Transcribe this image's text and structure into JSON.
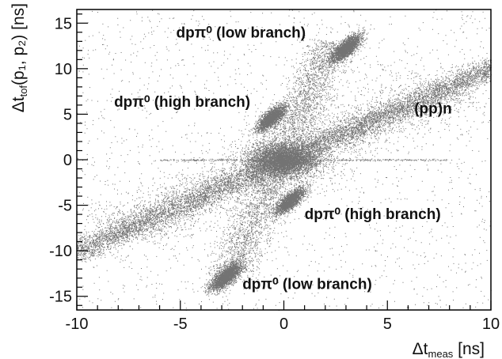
{
  "chart_data": {
    "type": "scatter",
    "title": "",
    "xlabel": {
      "main": "Δt",
      "sub": "meas",
      "unit": " [ns]"
    },
    "ylabel": {
      "main": "Δt",
      "sub": "tof",
      "args": "(p₁, p₂)",
      "unit": " [ns]"
    },
    "xlim": [
      -10,
      10
    ],
    "ylim": [
      -16.5,
      16.5
    ],
    "x_ticks": [
      -10,
      -5,
      0,
      5,
      10
    ],
    "y_ticks": [
      -15,
      -10,
      -5,
      0,
      5,
      10,
      15
    ],
    "grid": false,
    "legend": "none",
    "point_color": "#000000",
    "series": [
      {
        "label": "(pp)n",
        "shape": "diagonal band",
        "from": [
          -10,
          -10
        ],
        "to": [
          10,
          10
        ]
      },
      {
        "label": "dpπ⁰ (low branch)",
        "center": [
          3.0,
          12.3
        ]
      },
      {
        "label": "dpπ⁰ (high branch)",
        "center": [
          -0.6,
          4.6
        ]
      },
      {
        "label": "dpπ⁰ (high branch)",
        "center": [
          0.3,
          -4.5
        ]
      },
      {
        "label": "dpπ⁰ (low branch)",
        "center": [
          -2.8,
          -12.8
        ]
      },
      {
        "label": "",
        "center": [
          0.0,
          0.0
        ]
      }
    ],
    "annotations": [
      {
        "text": "dpπ⁰ (low branch)",
        "x": -5.2,
        "y": 13.4
      },
      {
        "text": "dpπ⁰ (high branch)",
        "x": -8.2,
        "y": 5.8
      },
      {
        "text": "(pp)n",
        "x": 6.3,
        "y": 5.1
      },
      {
        "text": "dpπ⁰ (high branch)",
        "x": 1.0,
        "y": -6.5
      },
      {
        "text": "dpπ⁰ (low branch)",
        "x": -2.0,
        "y": -14.2
      }
    ]
  }
}
